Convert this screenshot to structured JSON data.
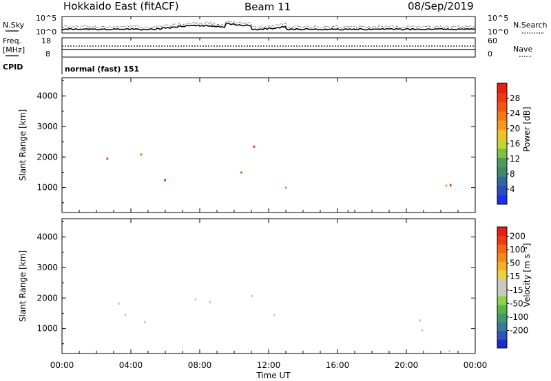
{
  "header": {
    "station": "Hokkaido East (fitACF)",
    "beam": "Beam 11",
    "date": "08/Sep/2019"
  },
  "noise_panel": {
    "left_label": "N.Sky",
    "right_label": "N.Search",
    "ticks": [
      "10^5",
      "10^0"
    ]
  },
  "freq_panel": {
    "left_label_line1": "Freq.",
    "left_label_line2": "[MHz]",
    "left_ticks": [
      "18",
      "8"
    ],
    "right_label": "Nave",
    "right_ticks": [
      "60",
      "0"
    ]
  },
  "cpid_panel": {
    "label": "CPID",
    "mode": "normal (fast) 151"
  },
  "chart_data": [
    {
      "type": "heatmap",
      "name": "power",
      "ylabel": "Slant Range [km]",
      "ylim": [
        180,
        4600
      ],
      "yticks": [
        "1000",
        "2000",
        "3000",
        "4000"
      ],
      "xlim": [
        0,
        24
      ],
      "colorbar": {
        "label": "Power [dB]",
        "ticks": [
          "4",
          "8",
          "12",
          "16",
          "20",
          "24",
          "28"
        ],
        "colors": [
          "#1f2df0",
          "#2b4cc4",
          "#2e6aa0",
          "#3e8a6a",
          "#4f9a58",
          "#7fbf45",
          "#c7d437",
          "#f0c22a",
          "#f59a1c",
          "#f47818",
          "#f05614",
          "#ee3a10",
          "#e82010"
        ]
      }
    },
    {
      "type": "heatmap",
      "name": "velocity",
      "ylabel": "Slant Range [km]",
      "ylim": [
        180,
        4600
      ],
      "yticks": [
        "1000",
        "2000",
        "3000",
        "4000"
      ],
      "xlim": [
        0,
        24
      ],
      "colorbar": {
        "label": "Velocity [m s⁻¹]",
        "ticks": [
          "200",
          "100",
          "50",
          "15",
          "-15",
          "-50",
          "-100",
          "-200"
        ],
        "colors": [
          "#1c2cc8",
          "#2f54b8",
          "#3a7a9c",
          "#3f9a6a",
          "#55b64e",
          "#8fd24a",
          "#c8c8c0",
          "#c8c8c0",
          "#f0d040",
          "#f3b029",
          "#f48a1c",
          "#f26418",
          "#ee3c12",
          "#e81e10"
        ]
      }
    }
  ],
  "time_axis": {
    "labels": [
      "00:00",
      "04:00",
      "08:00",
      "12:00",
      "16:00",
      "20:00",
      "00:00"
    ],
    "title": "Time UT"
  }
}
